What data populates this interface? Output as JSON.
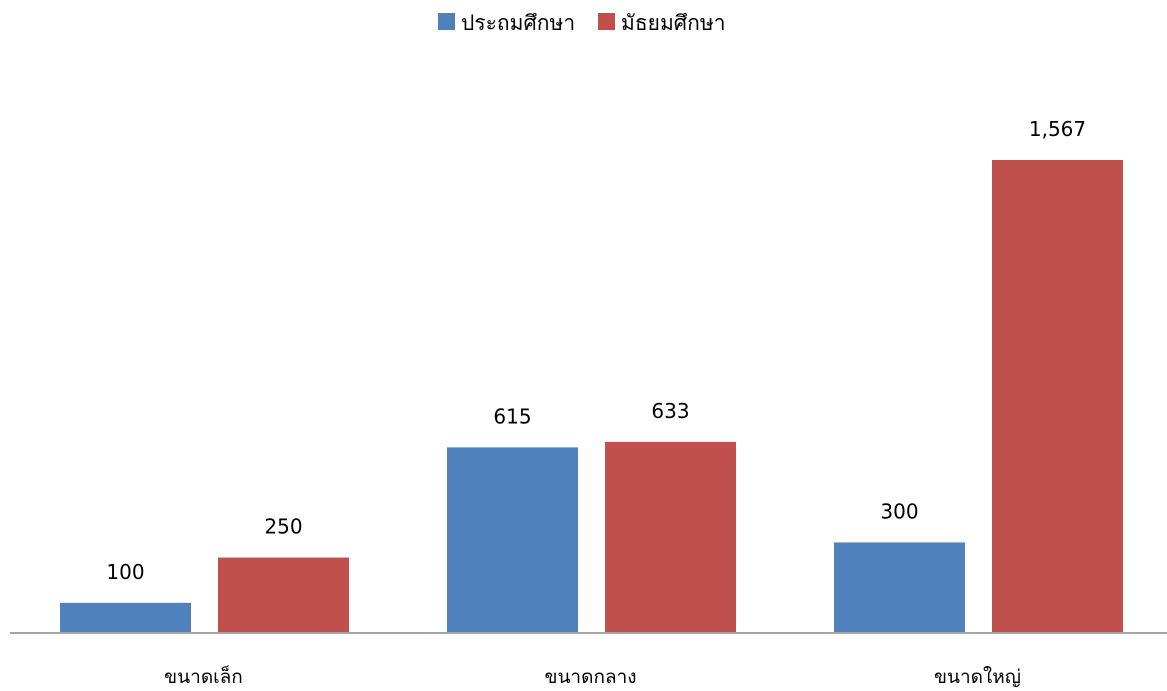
{
  "chart_data": {
    "type": "bar",
    "categories": [
      "ขนาดเล็ก",
      "ขนาดกลาง",
      "ขนาดใหญ่"
    ],
    "series": [
      {
        "name": "ประถมศึกษา",
        "values": [
          100,
          615,
          300
        ],
        "labels": [
          "100",
          "615",
          "300"
        ],
        "color": "#4F81BD"
      },
      {
        "name": "มัธยมศึกษา",
        "values": [
          250,
          633,
          1567
        ],
        "labels": [
          "250",
          "633",
          "1,567"
        ],
        "color": "#C0504D"
      }
    ],
    "ylim": [
      0,
      1567
    ],
    "legend_position": "top-center",
    "grid": false,
    "data_labels": true,
    "axis_color": "#A6A6A6"
  }
}
